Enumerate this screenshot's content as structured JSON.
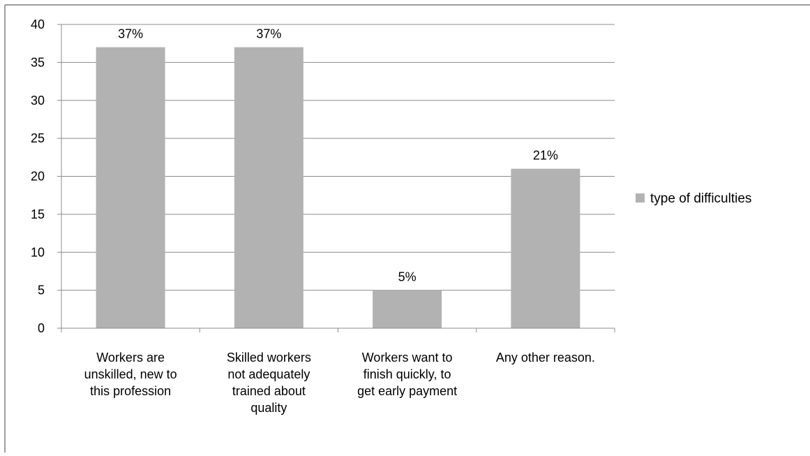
{
  "chart_data": {
    "type": "bar",
    "categories": [
      [
        "Workers are",
        "unskilled, new to",
        "this profession"
      ],
      [
        "Skilled workers",
        "not adequately",
        "trained about",
        "quality"
      ],
      [
        "Workers want to",
        "finish quickly, to",
        "get early payment"
      ],
      [
        "Any other reason."
      ]
    ],
    "series": [
      {
        "name": "type of difficulties",
        "values": [
          37,
          37,
          5,
          21
        ],
        "data_labels": [
          "37%",
          "37%",
          "5%",
          "21%"
        ]
      }
    ],
    "ylim": [
      0,
      40
    ],
    "yticks": [
      0,
      5,
      10,
      15,
      20,
      25,
      30,
      35,
      40
    ],
    "grid": true,
    "legend_position": "right",
    "colors": {
      "bar": "#b2b2b2",
      "grid": "#8c8c8c",
      "axis": "#8c8c8c",
      "text": "#000000",
      "frame": "#7f7f7f"
    }
  }
}
